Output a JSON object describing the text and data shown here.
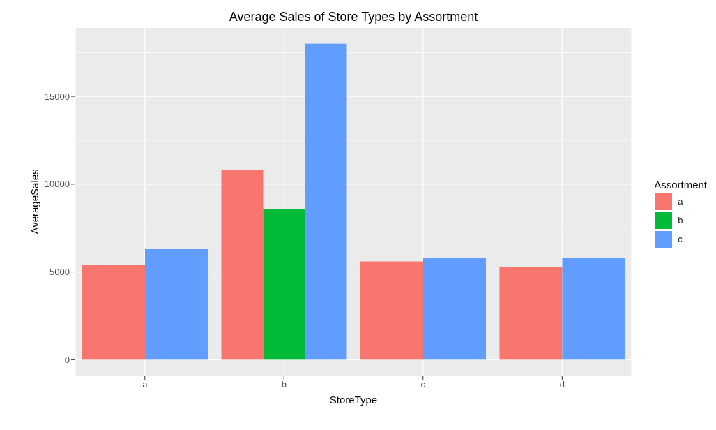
{
  "chart_data": {
    "type": "bar",
    "title": "Average Sales of Store Types by Assortment",
    "xlabel": "StoreType",
    "ylabel": "AverageSales",
    "legend_title": "Assortment",
    "categories": [
      "a",
      "b",
      "c",
      "d"
    ],
    "series": [
      {
        "name": "a",
        "color": "#f8766d",
        "values": [
          5400,
          10800,
          5600,
          5300
        ]
      },
      {
        "name": "b",
        "color": "#00ba38",
        "values": [
          null,
          8600,
          null,
          null
        ]
      },
      {
        "name": "c",
        "color": "#619cff",
        "values": [
          6300,
          18000,
          5800,
          5800
        ]
      }
    ],
    "ylim": [
      -900,
      18900
    ],
    "yticks": [
      0,
      5000,
      10000,
      15000
    ],
    "grid": true,
    "legend": "right"
  }
}
